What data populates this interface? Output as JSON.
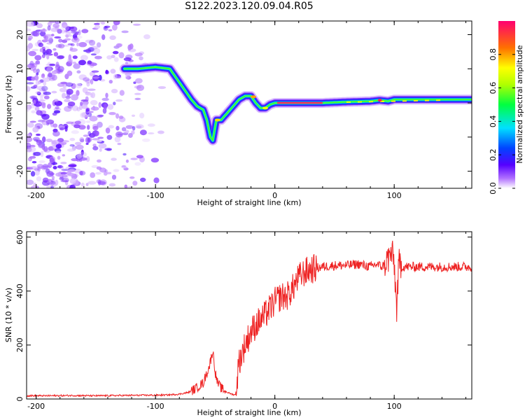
{
  "title": "S122.2023.120.09.04.R05",
  "chart_data": [
    {
      "type": "heatmap",
      "title": "",
      "xlabel": "Height of straight line (km)",
      "ylabel": "Frequency (Hz)",
      "xlim": [
        -208,
        165
      ],
      "ylim": [
        -25,
        24
      ],
      "xticks": [
        -200,
        -100,
        0,
        100
      ],
      "yticks": [
        -20,
        -10,
        0,
        10,
        20
      ],
      "colorbar": {
        "label": "Normalized spectral amplitude",
        "range": [
          0,
          1
        ],
        "ticks": [
          0.0,
          0.2,
          0.4,
          0.6,
          0.8
        ]
      },
      "ridge": {
        "description_free_points": true,
        "x": [
          -126,
          -115,
          -100,
          -88,
          -82,
          -76,
          -70,
          -65,
          -60,
          -57,
          -54,
          -52,
          -49,
          -45,
          -40,
          -35,
          -30,
          -25,
          -20,
          -16,
          -12,
          -8,
          -4,
          0,
          20,
          40,
          60,
          80,
          88,
          95,
          100,
          120,
          140,
          165
        ],
        "y": [
          10,
          10,
          10.5,
          10,
          7,
          4,
          1,
          -1,
          -2,
          -5,
          -10,
          -11,
          -5,
          -5,
          -3,
          -1,
          1,
          2,
          2,
          0,
          -1.5,
          -1.5,
          -0.5,
          0,
          0,
          0,
          0.3,
          0.5,
          0.8,
          0.5,
          1,
          1,
          1,
          1
        ]
      },
      "noise_region_x": [
        -208,
        -90
      ]
    },
    {
      "type": "line",
      "title": "",
      "xlabel": "Height of straight line (km)",
      "ylabel": "SNR (10 * v/v)",
      "xlim": [
        -208,
        165
      ],
      "ylim": [
        0,
        620
      ],
      "xticks": [
        -200,
        -100,
        0,
        100
      ],
      "yticks": [
        0,
        200,
        400,
        600
      ],
      "series": [
        {
          "color": "#ee2222",
          "x": [
            -208,
            -190,
            -170,
            -150,
            -130,
            -110,
            -100,
            -90,
            -80,
            -72,
            -66,
            -60,
            -55,
            -52,
            -50,
            -48,
            -45,
            -40,
            -36,
            -33,
            -30,
            -25,
            -20,
            -15,
            -10,
            -5,
            0,
            5,
            10,
            15,
            20,
            25,
            30,
            40,
            50,
            60,
            70,
            80,
            85,
            90,
            95,
            98,
            100,
            102,
            104,
            106,
            110,
            120,
            130,
            140,
            150,
            160,
            165
          ],
          "y": [
            12,
            12,
            13,
            12,
            13,
            14,
            14,
            15,
            18,
            25,
            40,
            60,
            120,
            180,
            100,
            60,
            40,
            25,
            18,
            15,
            140,
            200,
            250,
            280,
            300,
            330,
            360,
            380,
            380,
            410,
            450,
            470,
            480,
            490,
            495,
            495,
            500,
            490,
            500,
            490,
            520,
            540,
            500,
            330,
            500,
            490,
            490,
            490,
            490,
            490,
            490,
            490,
            490
          ]
        }
      ]
    }
  ]
}
